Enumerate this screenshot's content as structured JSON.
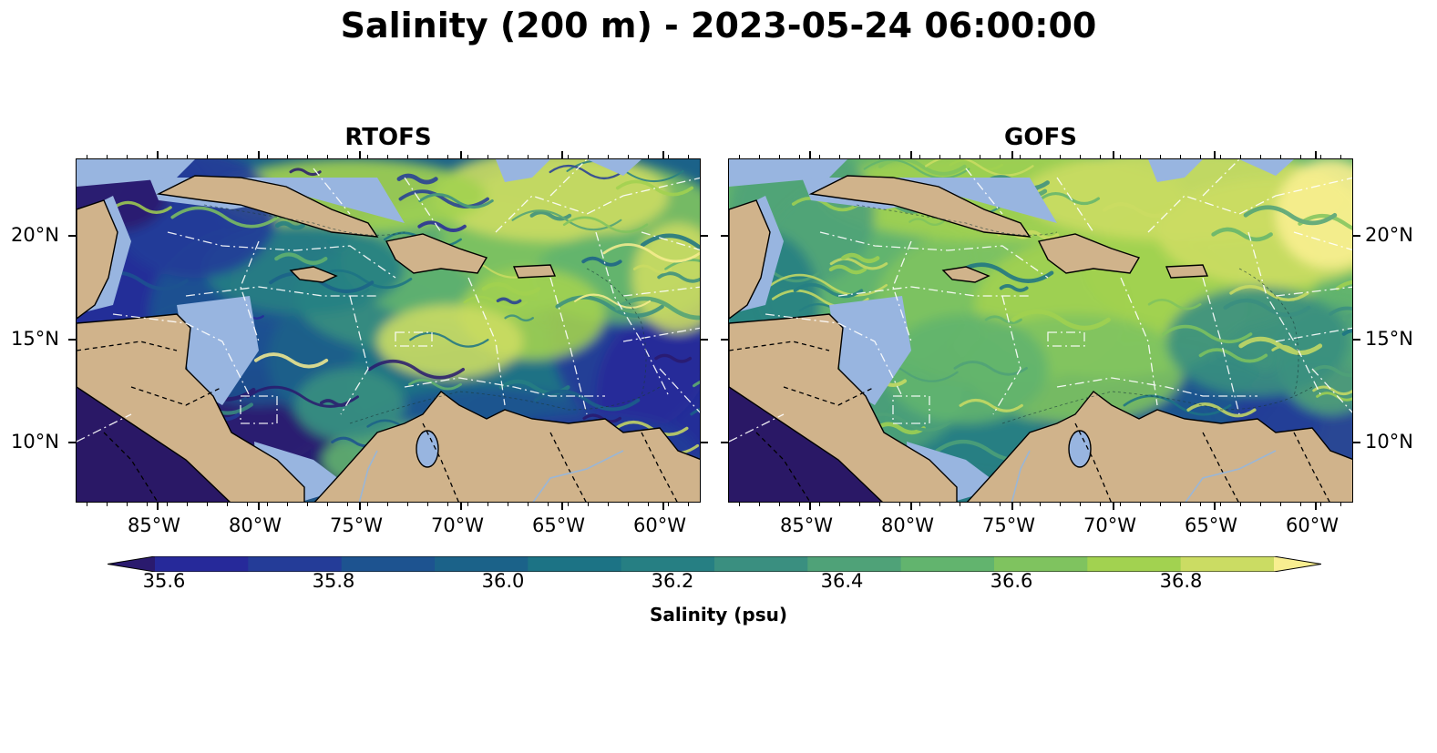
{
  "title": "Salinity (200 m) - 2023-05-24 06:00:00",
  "panels": [
    {
      "name": "RTOFS"
    },
    {
      "name": "GOFS"
    }
  ],
  "axes": {
    "x_ticks": [
      "85°W",
      "80°W",
      "75°W",
      "70°W",
      "65°W",
      "60°W"
    ],
    "y_ticks": [
      "20°N",
      "15°N",
      "10°N"
    ]
  },
  "colorbar": {
    "label": "Salinity (psu)",
    "ticks": [
      "35.6",
      "35.8",
      "36.0",
      "36.2",
      "36.4",
      "36.6",
      "36.8"
    ],
    "levels": [
      35.6,
      35.7,
      35.8,
      35.9,
      36.0,
      36.1,
      36.2,
      36.3,
      36.4,
      36.5,
      36.6,
      36.7,
      36.8,
      36.9
    ],
    "colors": [
      "#2a1a6e",
      "#26299a",
      "#243c98",
      "#1d5390",
      "#1b6289",
      "#1c7385",
      "#267f83",
      "#3a8f80",
      "#4fa278",
      "#62b46e",
      "#7fc35f",
      "#a2d250",
      "#cbdc63",
      "#f8ee90"
    ],
    "extend": "both"
  },
  "map_colors": {
    "land": "#d0b38b",
    "shallow_water": "#98b5e0",
    "outside_domain": "#2a1866",
    "borders": "#000000",
    "eez_lines": "#ffffff"
  },
  "chart_data": [
    {
      "type": "heatmap",
      "title": "RTOFS",
      "variable": "Salinity (psu)",
      "depth": "200 m",
      "xlim": [
        -89,
        -58
      ],
      "ylim": [
        7,
        24
      ],
      "summary": "Mostly low salinity (35.6-36.0) in the western Caribbean and Gulf of Honduras; higher salinity (36.6-36.9) north of the Greater Antilles and in eastern Atlantic filaments"
    },
    {
      "type": "heatmap",
      "title": "GOFS",
      "variable": "Salinity (psu)",
      "depth": "200 m",
      "xlim": [
        -89,
        -58
      ],
      "ylim": [
        7,
        24
      ],
      "summary": "Mostly intermediate to high salinity (36.4-36.8) across the Caribbean; lower values (36.0-36.2) along the southern Caribbean coast"
    }
  ]
}
